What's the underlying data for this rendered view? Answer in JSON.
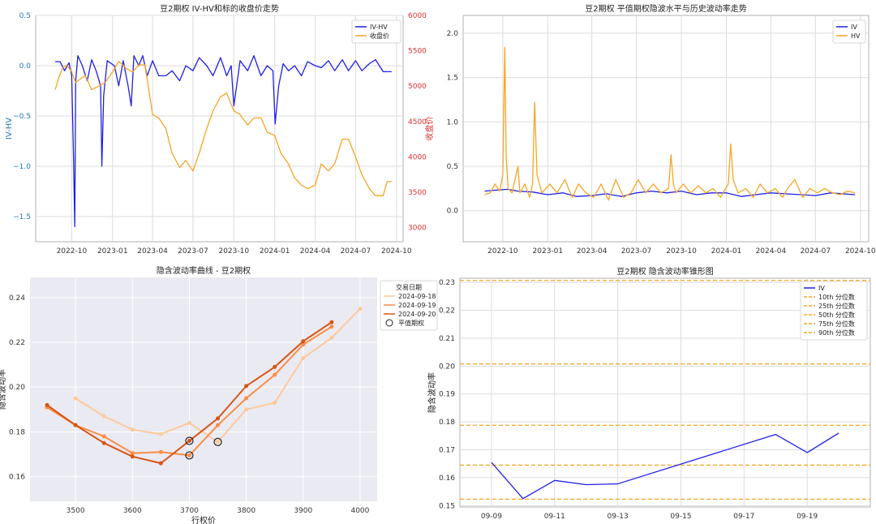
{
  "chart_data": [
    {
      "type": "line",
      "title": "豆2期权 IV-HV和标的收盘价走势",
      "ylabel": "IV-HV",
      "y2label": "收盘价",
      "xticks": [
        "2022-10",
        "2023-01",
        "2023-04",
        "2023-07",
        "2023-10",
        "2024-01",
        "2024-04",
        "2024-07",
        "2024-10"
      ],
      "yticks": [
        "0.5",
        "0.0",
        "−0.5",
        "−1.0",
        "−1.5"
      ],
      "y2ticks": [
        "6000",
        "5500",
        "5000",
        "4500",
        "4000",
        "3500",
        "3000"
      ],
      "ylim": [
        -1.75,
        0.5
      ],
      "y2lim": [
        2800,
        6000
      ],
      "legend": "top-right",
      "grid": true,
      "series": [
        {
          "name": "IV-HV",
          "color": "#1f1fe8",
          "axis": "left",
          "x": [
            "2022-08-25",
            "2022-09-05",
            "2022-09-15",
            "2022-09-25",
            "2022-10-01",
            "2022-10-05",
            "2022-10-08",
            "2022-10-10",
            "2022-10-15",
            "2022-10-25",
            "2022-11-05",
            "2022-11-15",
            "2022-11-25",
            "2022-12-05",
            "2022-12-08",
            "2022-12-12",
            "2022-12-20",
            "2023-01-05",
            "2023-01-15",
            "2023-01-25",
            "2023-02-05",
            "2023-02-12",
            "2023-02-18",
            "2023-03-01",
            "2023-03-10",
            "2023-03-20",
            "2023-04-01",
            "2023-04-15",
            "2023-05-01",
            "2023-05-15",
            "2023-06-01",
            "2023-06-15",
            "2023-07-01",
            "2023-07-15",
            "2023-08-01",
            "2023-08-15",
            "2023-09-01",
            "2023-09-15",
            "2023-09-25",
            "2023-10-01",
            "2023-10-15",
            "2023-11-01",
            "2023-11-15",
            "2023-12-01",
            "2023-12-15",
            "2023-12-28",
            "2024-01-02",
            "2024-01-10",
            "2024-01-20",
            "2024-02-01",
            "2024-02-15",
            "2024-03-01",
            "2024-03-15",
            "2024-04-01",
            "2024-04-15",
            "2024-05-01",
            "2024-05-15",
            "2024-06-01",
            "2024-06-15",
            "2024-07-01",
            "2024-07-15",
            "2024-08-01",
            "2024-08-15",
            "2024-09-01",
            "2024-09-20"
          ],
          "y": [
            0.04,
            0.04,
            -0.05,
            0.03,
            -0.1,
            -0.9,
            -1.6,
            -0.15,
            0.1,
            0.0,
            -0.15,
            0.06,
            -0.05,
            -0.2,
            -1.0,
            -0.3,
            0.05,
            0.0,
            -0.2,
            0.05,
            -0.2,
            -0.4,
            0.1,
            0.0,
            0.1,
            -0.1,
            0.05,
            -0.1,
            -0.1,
            -0.05,
            -0.15,
            0.0,
            -0.05,
            0.08,
            0.0,
            -0.1,
            0.08,
            -0.1,
            0.0,
            -0.4,
            0.05,
            -0.05,
            0.1,
            -0.1,
            0.0,
            -0.05,
            -0.58,
            -0.2,
            0.02,
            -0.05,
            0.0,
            -0.1,
            0.04,
            0.0,
            -0.02,
            0.05,
            -0.05,
            0.06,
            -0.05,
            0.05,
            -0.05,
            0.02,
            0.06,
            -0.06,
            -0.06
          ]
        },
        {
          "name": "收盘价",
          "color": "#f5a623",
          "axis": "right",
          "x": [
            "2022-08-25",
            "2022-09-01",
            "2022-09-10",
            "2022-09-20",
            "2022-10-01",
            "2022-10-10",
            "2022-10-20",
            "2022-11-01",
            "2022-11-15",
            "2022-12-01",
            "2022-12-15",
            "2023-01-01",
            "2023-01-15",
            "2023-02-01",
            "2023-02-15",
            "2023-03-01",
            "2023-03-15",
            "2023-04-01",
            "2023-04-15",
            "2023-05-01",
            "2023-05-15",
            "2023-06-01",
            "2023-06-15",
            "2023-07-01",
            "2023-07-15",
            "2023-08-01",
            "2023-08-15",
            "2023-09-01",
            "2023-09-15",
            "2023-10-01",
            "2023-10-15",
            "2023-11-01",
            "2023-11-15",
            "2023-12-01",
            "2023-12-15",
            "2024-01-01",
            "2024-01-15",
            "2024-02-01",
            "2024-02-15",
            "2024-03-01",
            "2024-03-15",
            "2024-04-01",
            "2024-04-15",
            "2024-05-01",
            "2024-05-15",
            "2024-06-01",
            "2024-06-15",
            "2024-07-01",
            "2024-07-15",
            "2024-08-01",
            "2024-08-15",
            "2024-09-01",
            "2024-09-10",
            "2024-09-20"
          ],
          "y": [
            4950,
            5100,
            5250,
            5300,
            5200,
            5050,
            5100,
            5150,
            4950,
            5000,
            5050,
            5200,
            5350,
            5250,
            5200,
            5300,
            5300,
            4600,
            4550,
            4400,
            4050,
            3850,
            3950,
            3800,
            4050,
            4400,
            4650,
            4850,
            4900,
            4650,
            4600,
            4450,
            4550,
            4550,
            4350,
            4300,
            4050,
            3900,
            3700,
            3600,
            3550,
            3600,
            3900,
            3800,
            3900,
            4250,
            4250,
            4000,
            3750,
            3550,
            3450,
            3450,
            3650,
            3650
          ]
        }
      ]
    },
    {
      "type": "line",
      "title": "豆2期权 平值期权隐波水平与历史波动率走势",
      "xticks": [
        "2022-10",
        "2023-01",
        "2023-04",
        "2023-07",
        "2023-10",
        "2024-01",
        "2024-04",
        "2024-07",
        "2024-10"
      ],
      "yticks": [
        "2.0",
        "1.5",
        "1.0",
        "0.5",
        "0.0"
      ],
      "ylim": [
        -0.35,
        2.2
      ],
      "legend": "top-right",
      "grid": true,
      "series": [
        {
          "name": "IV",
          "color": "#1f1fe8",
          "x": [
            "2022-08-25",
            "2022-09-15",
            "2022-10-10",
            "2022-11-01",
            "2022-12-01",
            "2023-01-01",
            "2023-02-01",
            "2023-03-01",
            "2023-04-01",
            "2023-05-01",
            "2023-06-01",
            "2023-07-01",
            "2023-08-01",
            "2023-09-01",
            "2023-10-01",
            "2023-11-01",
            "2023-12-01",
            "2024-01-01",
            "2024-02-01",
            "2024-03-01",
            "2024-04-01",
            "2024-05-01",
            "2024-06-01",
            "2024-07-01",
            "2024-08-01",
            "2024-09-20"
          ],
          "y": [
            0.22,
            0.23,
            0.24,
            0.22,
            0.21,
            0.18,
            0.2,
            0.16,
            0.17,
            0.19,
            0.16,
            0.2,
            0.22,
            0.2,
            0.22,
            0.18,
            0.2,
            0.2,
            0.16,
            0.18,
            0.2,
            0.19,
            0.18,
            0.17,
            0.2,
            0.18
          ]
        },
        {
          "name": "HV",
          "color": "#f5a623",
          "x": [
            "2022-08-25",
            "2022-09-05",
            "2022-09-15",
            "2022-09-25",
            "2022-10-01",
            "2022-10-05",
            "2022-10-08",
            "2022-10-12",
            "2022-10-20",
            "2022-11-01",
            "2022-11-05",
            "2022-11-15",
            "2022-11-25",
            "2022-12-01",
            "2022-12-05",
            "2022-12-10",
            "2022-12-20",
            "2023-01-05",
            "2023-01-20",
            "2023-02-05",
            "2023-02-20",
            "2023-03-05",
            "2023-03-20",
            "2023-04-05",
            "2023-04-20",
            "2023-05-05",
            "2023-05-20",
            "2023-06-05",
            "2023-06-20",
            "2023-07-05",
            "2023-07-20",
            "2023-08-05",
            "2023-08-20",
            "2023-09-05",
            "2023-09-10",
            "2023-09-15",
            "2023-09-20",
            "2023-10-05",
            "2023-10-20",
            "2023-11-05",
            "2023-11-20",
            "2023-12-05",
            "2023-12-20",
            "2024-01-05",
            "2024-01-10",
            "2024-01-15",
            "2024-01-25",
            "2024-02-10",
            "2024-02-25",
            "2024-03-10",
            "2024-03-25",
            "2024-04-10",
            "2024-04-25",
            "2024-05-05",
            "2024-05-20",
            "2024-06-05",
            "2024-06-20",
            "2024-07-05",
            "2024-07-20",
            "2024-08-05",
            "2024-08-20",
            "2024-09-05",
            "2024-09-20"
          ],
          "y": [
            0.18,
            0.2,
            0.3,
            0.22,
            0.4,
            1.84,
            0.6,
            0.25,
            0.2,
            0.5,
            0.2,
            0.3,
            0.15,
            0.3,
            1.22,
            0.4,
            0.2,
            0.3,
            0.2,
            0.35,
            0.15,
            0.3,
            0.2,
            0.15,
            0.3,
            0.12,
            0.35,
            0.15,
            0.2,
            0.35,
            0.2,
            0.3,
            0.2,
            0.25,
            0.63,
            0.3,
            0.2,
            0.3,
            0.2,
            0.28,
            0.2,
            0.25,
            0.15,
            0.3,
            0.75,
            0.35,
            0.2,
            0.25,
            0.15,
            0.3,
            0.2,
            0.25,
            0.15,
            0.25,
            0.35,
            0.15,
            0.25,
            0.2,
            0.25,
            0.2,
            0.18,
            0.22,
            0.2
          ]
        }
      ]
    },
    {
      "type": "line",
      "title": "隐含波动率曲线 - 豆2期权",
      "xlabel": "行权价",
      "ylabel": "隐含波动率",
      "xticks": [
        3500,
        3600,
        3700,
        3800,
        3900,
        4000
      ],
      "yticks": [
        "0.24",
        "0.22",
        "0.20",
        "0.18",
        "0.16"
      ],
      "xlim": [
        3420,
        4030
      ],
      "ylim": [
        0.149,
        0.249
      ],
      "legend_title": "交易日期",
      "legend_marker_label": "平值期权",
      "legend": "top-right",
      "grid": true,
      "series": [
        {
          "name": "2024-09-18",
          "color": "#fdc99b",
          "x": [
            3500,
            3550,
            3600,
            3650,
            3700,
            3750,
            3800,
            3850,
            3900,
            3950,
            4000
          ],
          "y": [
            0.195,
            0.187,
            0.181,
            0.179,
            0.184,
            0.1755,
            0.19,
            0.193,
            0.213,
            0.222,
            0.235
          ]
        },
        {
          "name": "2024-09-19",
          "color": "#f98d45",
          "x": [
            3450,
            3500,
            3550,
            3600,
            3650,
            3700,
            3750,
            3800,
            3850,
            3900,
            3950
          ],
          "y": [
            0.191,
            0.183,
            0.178,
            0.1705,
            0.171,
            0.1695,
            0.183,
            0.195,
            0.2055,
            0.219,
            0.227
          ]
        },
        {
          "name": "2024-09-20",
          "color": "#d65515",
          "x": [
            3450,
            3500,
            3550,
            3600,
            3650,
            3700,
            3750,
            3800,
            3850,
            3900,
            3950
          ],
          "y": [
            0.192,
            0.183,
            0.175,
            0.169,
            0.166,
            0.176,
            0.186,
            0.2005,
            0.209,
            0.2205,
            0.229
          ]
        }
      ],
      "atm_points": [
        {
          "x": 3700,
          "y": 0.176
        },
        {
          "x": 3700,
          "y": 0.1695
        },
        {
          "x": 3750,
          "y": 0.1755
        }
      ]
    },
    {
      "type": "line",
      "title": "豆2期权 隐含波动率锥形图",
      "ylabel": "隐含波动率",
      "xticks": [
        "09-09",
        "09-11",
        "09-13",
        "09-15",
        "09-17",
        "09-19"
      ],
      "yticks": [
        "0.23",
        "0.22",
        "0.21",
        "0.20",
        "0.19",
        "0.18",
        "0.17",
        "0.16",
        "0.15"
      ],
      "ylim": [
        0.1495,
        0.2315
      ],
      "legend": "top-right",
      "grid": true,
      "series": [
        {
          "name": "IV",
          "color": "#1f1fe8",
          "x": [
            "09-09",
            "09-10",
            "09-11",
            "09-12",
            "09-13",
            "09-18",
            "09-19",
            "09-20"
          ],
          "y": [
            0.1655,
            0.1525,
            0.159,
            0.1575,
            0.1578,
            0.1755,
            0.169,
            0.176
          ]
        }
      ],
      "percentile_lines": [
        {
          "name": "10th 分位数",
          "value": 0.1523
        },
        {
          "name": "25th 分位数",
          "value": 0.1645
        },
        {
          "name": "50th 分位数",
          "value": 0.1788
        },
        {
          "name": "75th 分位数",
          "value": 0.2008
        },
        {
          "name": "90th 分位数",
          "value": 0.2307
        }
      ],
      "percentile_color": "#f5a623"
    }
  ]
}
